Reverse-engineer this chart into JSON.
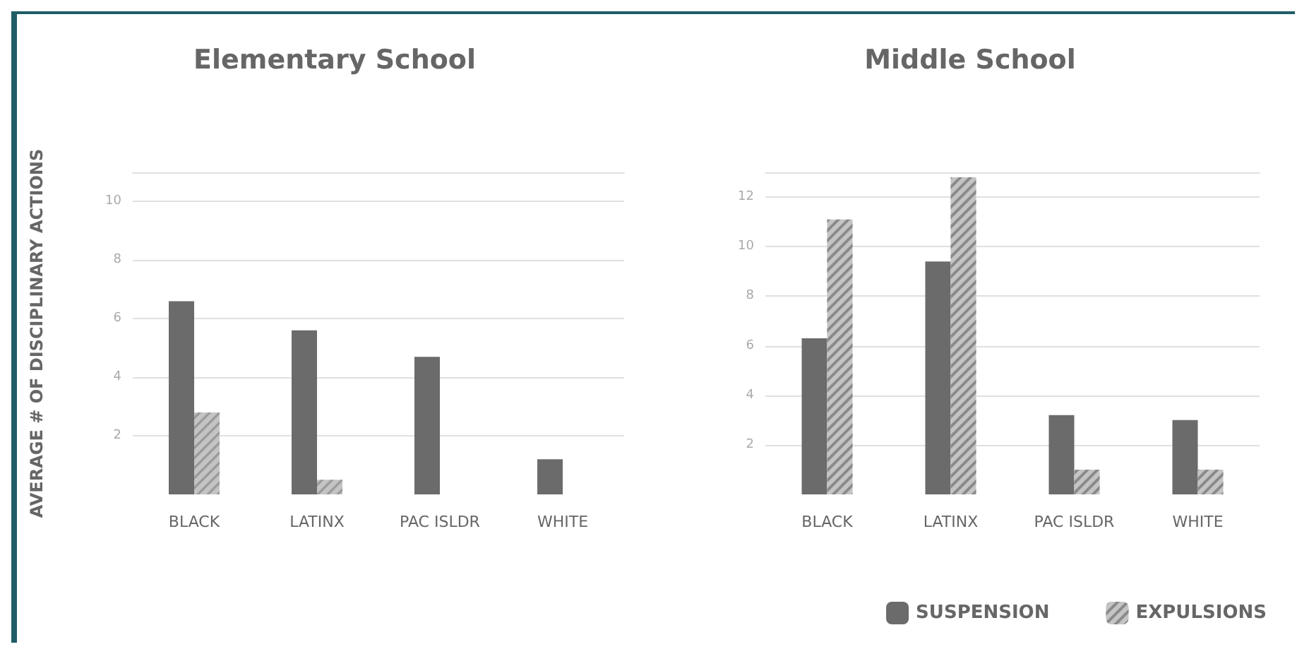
{
  "chart_data": [
    {
      "type": "bar",
      "title": "Elementary School",
      "ylabel": "AVERAGE # OF DISCIPLINARY ACTIONS",
      "categories": [
        "BLACK",
        "LATINX",
        "PAC ISLDR",
        "WHITE"
      ],
      "series": [
        {
          "color": "#6b6b6b",
          "values": [
            6.6,
            5.6,
            4.7,
            1.2
          ]
        },
        {
          "color": "#c4c4c4",
          "values": [
            2.8,
            0.5,
            0,
            0
          ]
        }
      ],
      "ylim": [
        0,
        11
      ],
      "yticks": [
        2,
        4,
        6,
        8,
        10
      ],
      "grid": "y",
      "legend": false
    },
    {
      "type": "bar",
      "title": "Middle School",
      "categories": [
        "BLACK",
        "LATINX",
        "PAC ISLDR",
        "WHITE"
      ],
      "series": [
        {
          "name": "SUSPENSION",
          "color": "#6b6b6b",
          "values": [
            6.3,
            9.4,
            3.2,
            3.0
          ]
        },
        {
          "name": "EXPULSIONS",
          "color": "#c4c4c4",
          "values": [
            11.1,
            12.8,
            1.0,
            1.0
          ]
        }
      ],
      "ylim": [
        0,
        13
      ],
      "yticks": [
        2,
        4,
        6,
        8,
        10,
        12
      ],
      "grid": "y",
      "legend": "bottom right"
    }
  ]
}
